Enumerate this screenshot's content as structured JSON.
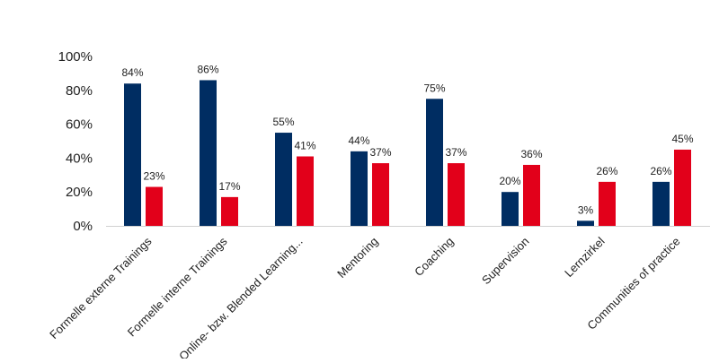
{
  "chart_data": {
    "type": "bar",
    "categories": [
      "Formelle externe Trainings",
      "Formelle interne Trainings",
      "Online- bzw. Blended Learning...",
      "Mentoring",
      "Coaching",
      "Supervision",
      "Lernzirkel",
      "Communities of practice"
    ],
    "series": [
      {
        "values": [
          84,
          86,
          55,
          44,
          75,
          20,
          3,
          26
        ],
        "color": "#002d62"
      },
      {
        "values": [
          23,
          17,
          41,
          37,
          37,
          36,
          26,
          45
        ],
        "color": "#e2001a"
      }
    ],
    "data_labels": [
      [
        "84%",
        "86%",
        "55%",
        "44%",
        "75%",
        "20%",
        "3%",
        "26%"
      ],
      [
        "23%",
        "17%",
        "41%",
        "37%",
        "37%",
        "36%",
        "26%",
        "45%"
      ]
    ],
    "yticks": [
      "0%",
      "20%",
      "40%",
      "60%",
      "80%",
      "100%"
    ],
    "ylim": [
      0,
      100
    ],
    "grid": false,
    "legend": "none"
  }
}
